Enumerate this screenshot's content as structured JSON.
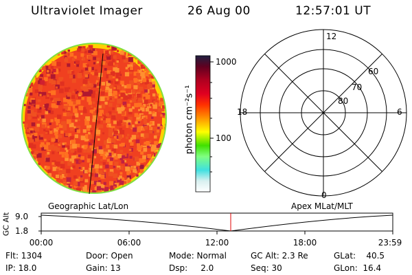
{
  "header": {
    "title": "Ultraviolet Imager",
    "date": "26 Aug 00",
    "time": "12:57:01 UT"
  },
  "colorbar": {
    "label": "photon cm⁻²s⁻¹",
    "tick_1000": "1000",
    "tick_100": "100",
    "colors": [
      "#ffffff",
      "#d8f0f0",
      "#40e0e0",
      "#80ff80",
      "#40e000",
      "#ffff00",
      "#ff8000",
      "#ff3000",
      "#e00020",
      "#b00020",
      "#600020",
      "#202040"
    ]
  },
  "polar_plot": {
    "mlt_labels": {
      "top": "12",
      "left": "18",
      "right": "6",
      "bottom": "0"
    },
    "lat_labels": [
      "60",
      "70",
      "80"
    ]
  },
  "strip": {
    "left_label": "Geographic Lat/Lon",
    "right_label": "Apex MLat/MLT",
    "y_axis_label": "GC Alt",
    "y_ticks": [
      "9.0",
      "1.8"
    ],
    "x_ticks": [
      "00:00",
      "06:00",
      "12:00",
      "18:00",
      "23:59"
    ]
  },
  "info": {
    "flt": "Flt: 1304",
    "ip": "IP: 18.0",
    "door": "Door: Open",
    "gain": "Gain: 13",
    "mode": "Mode: Normal",
    "dsp": "Dsp:     2.0",
    "gc_alt": "GC Alt: 2.3 Re",
    "seq": "Seq: 30",
    "glat": "GLat:    40.5",
    "glon": "GLon:  16.4"
  }
}
